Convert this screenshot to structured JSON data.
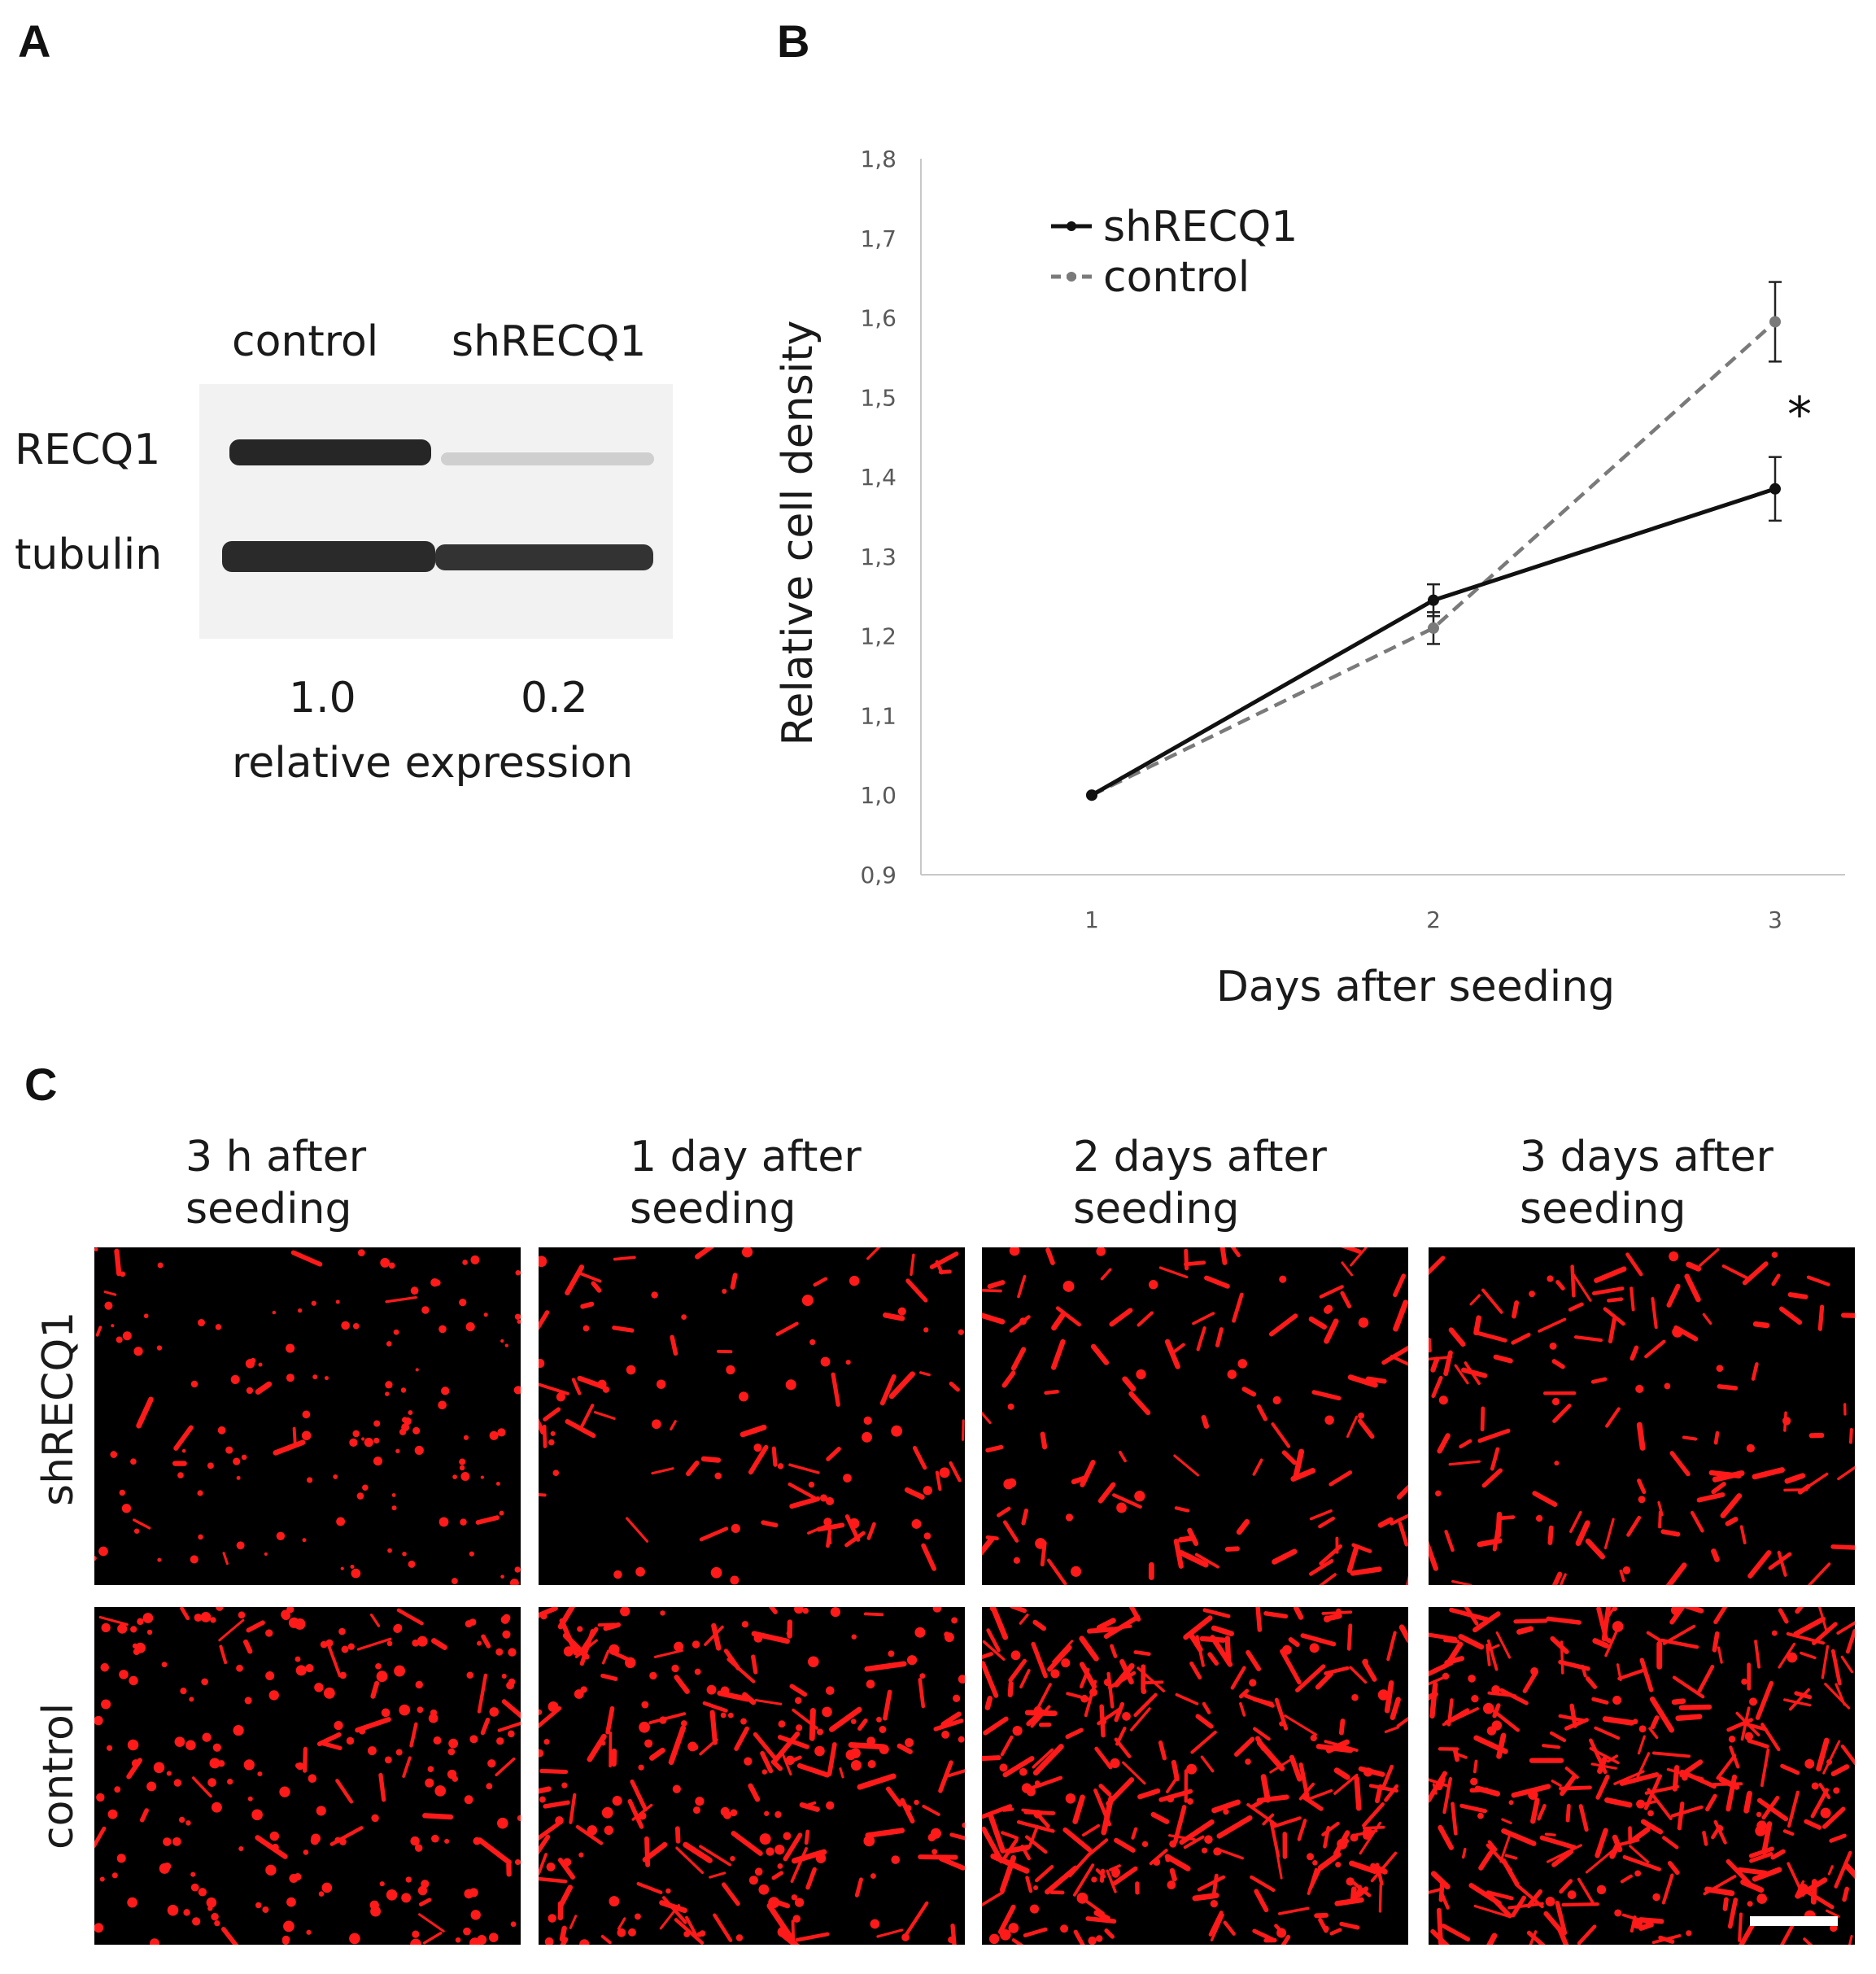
{
  "panels": {
    "A": "A",
    "B": "B",
    "C": "C"
  },
  "blot": {
    "lanes": [
      "control",
      "shRECQ1"
    ],
    "bands": [
      "RECQ1",
      "tubulin"
    ],
    "values": [
      "1.0",
      "0.2"
    ],
    "caption": "relative expression"
  },
  "chart_data": {
    "type": "line",
    "xlabel": "Days after seeding",
    "ylabel": "Relative cell density",
    "x": [
      1,
      2,
      3
    ],
    "xticks": [
      "1",
      "2",
      "3"
    ],
    "ylim": [
      0.9,
      1.8
    ],
    "yticks": [
      "0,9",
      "1,0",
      "1,1",
      "1,2",
      "1,3",
      "1,4",
      "1,5",
      "1,6",
      "1,7",
      "1,8"
    ],
    "grid": false,
    "legend_position": "top-left",
    "series": [
      {
        "name": "shRECQ1",
        "values": [
          1.0,
          1.245,
          1.385
        ],
        "errors": [
          0,
          0.02,
          0.04
        ],
        "color": "#111111",
        "dash": "solid"
      },
      {
        "name": "control",
        "values": [
          1.0,
          1.21,
          1.595
        ],
        "errors": [
          0,
          0.02,
          0.05
        ],
        "color": "#7a7a7a",
        "dash": "dashed"
      }
    ],
    "annotation": "*"
  },
  "micrographs": {
    "columns": [
      "3 h after\nseeding",
      "1 day after\nseeding",
      "2 days after\nseeding",
      "3 days after\nseeding"
    ],
    "rows": [
      "shRECQ1",
      "control"
    ],
    "cell_color": "#ff1a1a"
  }
}
